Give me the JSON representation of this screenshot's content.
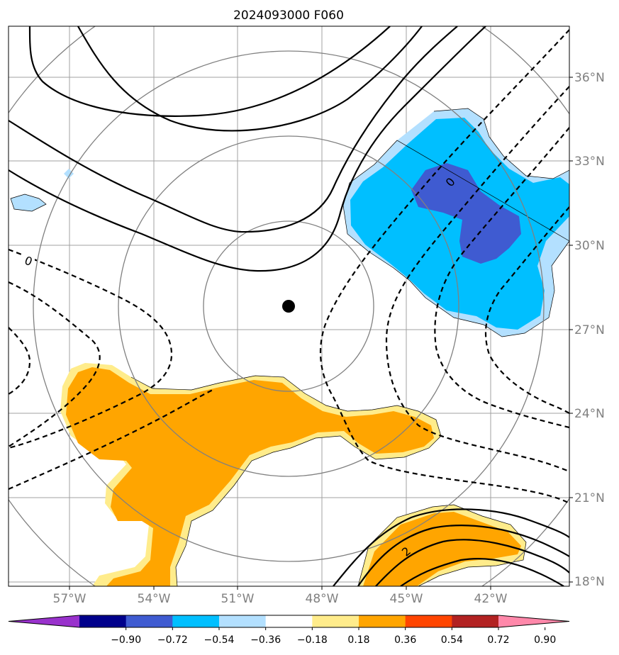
{
  "title": "2024093000 F060",
  "map": {
    "lat_labels": [
      "36°N",
      "33°N",
      "30°N",
      "27°N",
      "24°N",
      "21°N",
      "18°N"
    ],
    "lon_labels": [
      "57°W",
      "54°W",
      "51°W",
      "48°W",
      "45°W",
      "42°W"
    ],
    "contour_labels": {
      "zero_left": "0",
      "zero_right": "0",
      "two": "2"
    },
    "center_marker": "storm-center-dot",
    "colors": {
      "light_blue": "#b3e0ff",
      "blue": "#00bfff",
      "dark_blue": "#3f5bd1",
      "light_orange": "#ffec8b",
      "orange": "#ffa500",
      "grid": "#a0a0a0",
      "range_rings": "#808080"
    }
  },
  "colorbar": {
    "ticks": [
      "−0.90",
      "−0.72",
      "−0.54",
      "−0.36",
      "−0.18",
      "0.18",
      "0.36",
      "0.54",
      "0.72",
      "0.90"
    ],
    "colors": [
      "#9932cc",
      "#00008b",
      "#3f5bd1",
      "#00bfff",
      "#b3e0ff",
      "#ffffff",
      "#ffec8b",
      "#ffa500",
      "#ff4500",
      "#b22222",
      "#ff88aa"
    ]
  }
}
